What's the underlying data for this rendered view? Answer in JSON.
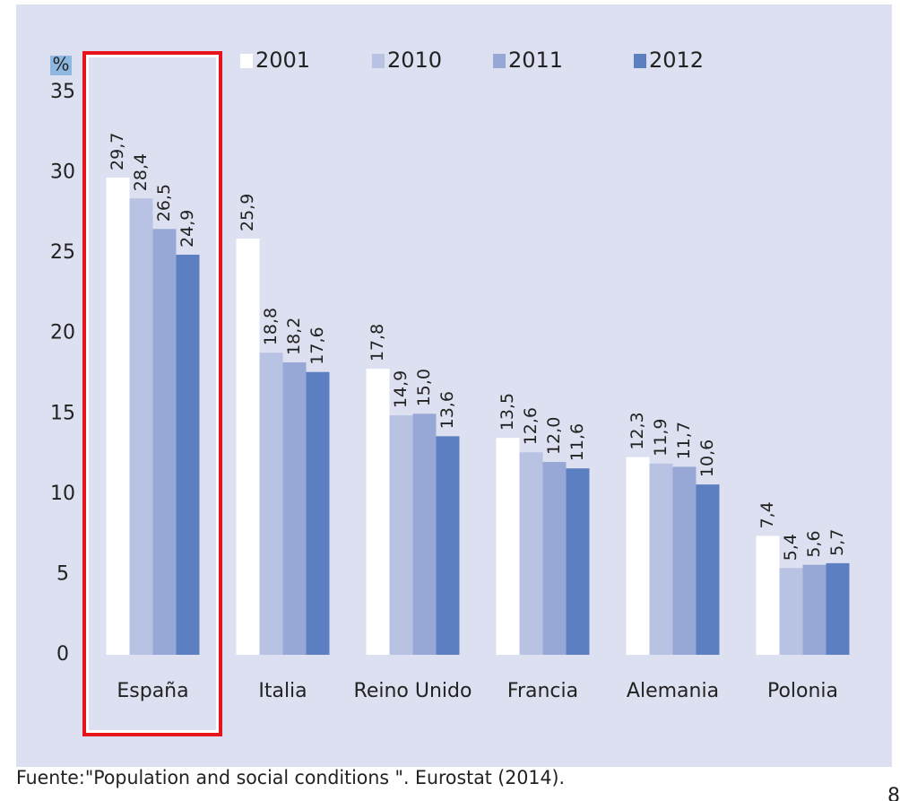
{
  "chart_data": {
    "type": "bar",
    "y_label": "%",
    "categories": [
      "España",
      "Italia",
      "Reino Unido",
      "Francia",
      "Alemania",
      "Polonia"
    ],
    "series": [
      {
        "name": "2001",
        "color": "#ffffff",
        "values": [
          29.7,
          25.9,
          17.8,
          13.5,
          12.3,
          7.4
        ],
        "value_labels": [
          "29,7",
          "25,9",
          "17,8",
          "13,5",
          "12,3",
          "7,4"
        ]
      },
      {
        "name": "2010",
        "color": "#b8c2e2",
        "values": [
          28.4,
          18.8,
          14.9,
          12.6,
          11.9,
          5.4
        ],
        "value_labels": [
          "28,4",
          "18,8",
          "14,9",
          "12,6",
          "11,9",
          "5,4"
        ]
      },
      {
        "name": "2011",
        "color": "#97a8d6",
        "values": [
          26.5,
          18.2,
          15.0,
          12.0,
          11.7,
          5.6
        ],
        "value_labels": [
          "26,5",
          "18,2",
          "15,0",
          "12,0",
          "11,7",
          "5,6"
        ]
      },
      {
        "name": "2012",
        "color": "#5b7fc0",
        "values": [
          24.9,
          17.6,
          13.6,
          11.6,
          10.6,
          5.7
        ],
        "value_labels": [
          "24,9",
          "17,6",
          "13,6",
          "11,6",
          "10,6",
          "5,7"
        ]
      }
    ],
    "ylim": [
      0,
      35
    ],
    "yticks": [
      0,
      5,
      10,
      15,
      20,
      25,
      30,
      35
    ],
    "grid": false,
    "source": "Fuente:\"Population and social conditions \". Eurostat (2014).",
    "page_number": "8"
  }
}
